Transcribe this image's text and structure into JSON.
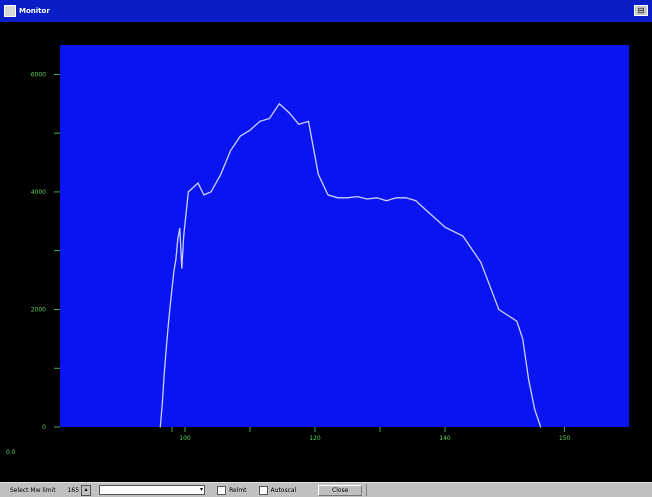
{
  "window": {
    "title": "Monitor",
    "button": "⊟"
  },
  "chart_data": {
    "type": "line",
    "title": "",
    "xlabel": "",
    "ylabel": "",
    "xlim": [
      0,
      150
    ],
    "ylim": [
      0,
      6500
    ],
    "xticks": [
      "100",
      "120",
      "140",
      "150"
    ],
    "yticks": [
      "0",
      "2000",
      "4000",
      "6000"
    ],
    "origin_label": "0.0",
    "colors": {
      "plot_bg": "#0a14f0",
      "line": "#c8d0ff",
      "axis_text": "#5cd35c",
      "frame": "#000000"
    },
    "series": [
      {
        "x": [
          81.0,
          82.5,
          84.0,
          85.5,
          87.0,
          88.5,
          90.0,
          91.5,
          93.0,
          94.5,
          96.0,
          97.5,
          99.0,
          100.5,
          102.0,
          102.9,
          104.0,
          105.5,
          107.0,
          108.5,
          110.0,
          111.5,
          113.0,
          114.5,
          116.0,
          117.5,
          119.0,
          120.5,
          122.0,
          123.5,
          125.0,
          126.5,
          128.0,
          129.5,
          131.0,
          132.5,
          134.0,
          135.5,
          137.0,
          138.5,
          140.0,
          141.5,
          143.0,
          144.5,
          146.0,
          146.5,
          147.0,
          147.5,
          148.0
        ],
        "y": [
          0,
          400,
          900,
          1300,
          1700,
          2050,
          2350,
          2650,
          2850,
          3200,
          3380,
          2700,
          3250,
          4000,
          4150,
          3950,
          4000,
          4300,
          4700,
          4950,
          5050,
          5200,
          5250,
          5500,
          5350,
          5150,
          5200,
          4300,
          3950,
          3900,
          3900,
          3920,
          3880,
          3900,
          3850,
          3900,
          3900,
          3850,
          3700,
          3550,
          3400,
          3250,
          2800,
          2000,
          1800,
          1500,
          800,
          300,
          0
        ]
      }
    ]
  },
  "statusbar": {
    "label": "Select Mw limit",
    "value": "165",
    "select_value": "",
    "check1": "Relmt",
    "check2": "Autoscal",
    "button": "Close"
  }
}
